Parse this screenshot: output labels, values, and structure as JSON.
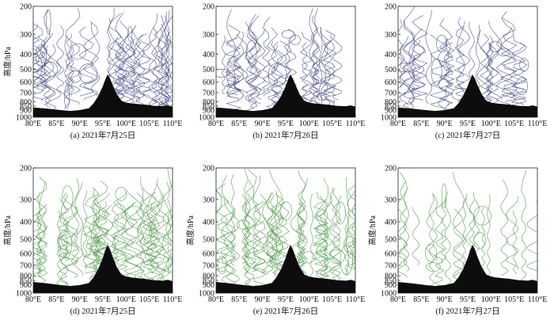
{
  "chart_data": [
    {
      "type": "contour",
      "caption": "(a) 2021年7月25日",
      "ylabel": "高度/hPa",
      "x_ticks": [
        "80°E",
        "85°E",
        "90°E",
        "95°E",
        "100°E",
        "105°E",
        "110°E"
      ],
      "y_ticks": [
        "200",
        "300",
        "400",
        "500",
        "600",
        "700",
        "800",
        "850",
        "900",
        "1000"
      ],
      "xlim": [
        80,
        110
      ],
      "ylim": [
        1000,
        200
      ],
      "y_scale": "log-pressure",
      "contour_color": "#3a3f78",
      "density": "high",
      "terrain": [
        [
          80,
          870
        ],
        [
          83,
          885
        ],
        [
          86,
          905
        ],
        [
          88,
          915
        ],
        [
          90,
          905
        ],
        [
          92,
          880
        ],
        [
          93,
          820
        ],
        [
          94,
          740
        ],
        [
          95,
          640
        ],
        [
          95.5,
          585
        ],
        [
          96,
          540
        ],
        [
          96.5,
          570
        ],
        [
          97,
          620
        ],
        [
          98,
          720
        ],
        [
          99,
          790
        ],
        [
          100,
          810
        ],
        [
          101,
          820
        ],
        [
          102,
          825
        ],
        [
          104,
          835
        ],
        [
          106,
          850
        ],
        [
          108,
          855
        ],
        [
          109,
          845
        ],
        [
          110,
          860
        ]
      ]
    },
    {
      "type": "contour",
      "caption": "(b) 2021年7月26日",
      "ylabel": "",
      "x_ticks": [
        "80°E",
        "85°E",
        "90°E",
        "95°E",
        "100°E",
        "105°E",
        "110°E"
      ],
      "y_ticks": [
        "200",
        "300",
        "400",
        "500",
        "600",
        "700",
        "800",
        "850",
        "900",
        "1000"
      ],
      "xlim": [
        80,
        110
      ],
      "ylim": [
        1000,
        200
      ],
      "y_scale": "log-pressure",
      "contour_color": "#3a3f78",
      "density": "medium",
      "terrain": [
        [
          80,
          870
        ],
        [
          83,
          885
        ],
        [
          86,
          905
        ],
        [
          88,
          915
        ],
        [
          90,
          905
        ],
        [
          92,
          880
        ],
        [
          93,
          820
        ],
        [
          94,
          740
        ],
        [
          95,
          640
        ],
        [
          95.5,
          585
        ],
        [
          96,
          540
        ],
        [
          96.5,
          570
        ],
        [
          97,
          620
        ],
        [
          98,
          720
        ],
        [
          99,
          790
        ],
        [
          100,
          810
        ],
        [
          101,
          820
        ],
        [
          102,
          825
        ],
        [
          104,
          835
        ],
        [
          106,
          850
        ],
        [
          108,
          855
        ],
        [
          109,
          845
        ],
        [
          110,
          860
        ]
      ]
    },
    {
      "type": "contour",
      "caption": "(c) 2021年7月27日",
      "ylabel": "",
      "x_ticks": [
        "80°E",
        "85°E",
        "90°E",
        "95°E",
        "100°E",
        "105°E",
        "110°E"
      ],
      "y_ticks": [
        "200",
        "300",
        "400",
        "500",
        "600",
        "700",
        "800",
        "850",
        "900",
        "1000"
      ],
      "xlim": [
        80,
        110
      ],
      "ylim": [
        1000,
        200
      ],
      "y_scale": "log-pressure",
      "contour_color": "#3a3f78",
      "density": "medium",
      "terrain": [
        [
          80,
          870
        ],
        [
          83,
          885
        ],
        [
          86,
          905
        ],
        [
          88,
          915
        ],
        [
          90,
          905
        ],
        [
          92,
          880
        ],
        [
          93,
          820
        ],
        [
          94,
          740
        ],
        [
          95,
          640
        ],
        [
          95.5,
          585
        ],
        [
          96,
          540
        ],
        [
          96.5,
          570
        ],
        [
          97,
          620
        ],
        [
          98,
          720
        ],
        [
          99,
          790
        ],
        [
          100,
          810
        ],
        [
          101,
          820
        ],
        [
          102,
          825
        ],
        [
          104,
          835
        ],
        [
          106,
          850
        ],
        [
          108,
          855
        ],
        [
          109,
          845
        ],
        [
          110,
          860
        ]
      ]
    },
    {
      "type": "contour",
      "caption": "(d) 2021年7月25日",
      "ylabel": "高度/hPa",
      "x_ticks": [
        "80°E",
        "85°E",
        "90°E",
        "95°E",
        "100°E",
        "105°E",
        "110°E"
      ],
      "y_ticks": [
        "200",
        "300",
        "400",
        "500",
        "600",
        "700",
        "800",
        "850",
        "900",
        "1000"
      ],
      "xlim": [
        80,
        110
      ],
      "ylim": [
        1000,
        200
      ],
      "y_scale": "log-pressure",
      "contour_color": "#3f8f3a",
      "density": "high",
      "terrain": [
        [
          80,
          870
        ],
        [
          83,
          885
        ],
        [
          86,
          905
        ],
        [
          88,
          915
        ],
        [
          90,
          905
        ],
        [
          92,
          880
        ],
        [
          93,
          820
        ],
        [
          94,
          740
        ],
        [
          95,
          640
        ],
        [
          95.5,
          585
        ],
        [
          96,
          540
        ],
        [
          96.5,
          570
        ],
        [
          97,
          620
        ],
        [
          98,
          720
        ],
        [
          99,
          790
        ],
        [
          100,
          810
        ],
        [
          101,
          820
        ],
        [
          102,
          825
        ],
        [
          104,
          835
        ],
        [
          106,
          850
        ],
        [
          108,
          855
        ],
        [
          109,
          845
        ],
        [
          110,
          860
        ]
      ]
    },
    {
      "type": "contour",
      "caption": "(e) 2021年7月26日",
      "ylabel": "高度/hPa",
      "x_ticks": [
        "80°E",
        "85°E",
        "90°E",
        "95°E",
        "100°E",
        "105°E",
        "110°E"
      ],
      "y_ticks": [
        "200",
        "300",
        "400",
        "500",
        "600",
        "700",
        "800",
        "850",
        "900",
        "1000"
      ],
      "xlim": [
        80,
        110
      ],
      "ylim": [
        1000,
        200
      ],
      "y_scale": "log-pressure",
      "contour_color": "#3f8f3a",
      "density": "high",
      "terrain": [
        [
          80,
          870
        ],
        [
          83,
          885
        ],
        [
          86,
          905
        ],
        [
          88,
          915
        ],
        [
          90,
          905
        ],
        [
          92,
          880
        ],
        [
          93,
          820
        ],
        [
          94,
          740
        ],
        [
          95,
          640
        ],
        [
          95.5,
          585
        ],
        [
          96,
          540
        ],
        [
          96.5,
          570
        ],
        [
          97,
          620
        ],
        [
          98,
          720
        ],
        [
          99,
          790
        ],
        [
          100,
          810
        ],
        [
          101,
          820
        ],
        [
          102,
          825
        ],
        [
          104,
          835
        ],
        [
          106,
          850
        ],
        [
          108,
          855
        ],
        [
          109,
          845
        ],
        [
          110,
          860
        ]
      ]
    },
    {
      "type": "contour",
      "caption": "(f) 2021年7月27日",
      "ylabel": "高度/hPa",
      "x_ticks": [
        "80°E",
        "85°E",
        "90°E",
        "95°E",
        "100°E",
        "105°E",
        "110°E"
      ],
      "y_ticks": [
        "200",
        "300",
        "400",
        "500",
        "600",
        "700",
        "800",
        "850",
        "900",
        "1000"
      ],
      "xlim": [
        80,
        110
      ],
      "ylim": [
        1000,
        200
      ],
      "y_scale": "log-pressure",
      "contour_color": "#3f8f3a",
      "density": "low",
      "terrain": [
        [
          80,
          870
        ],
        [
          83,
          885
        ],
        [
          86,
          905
        ],
        [
          88,
          915
        ],
        [
          90,
          905
        ],
        [
          92,
          880
        ],
        [
          93,
          820
        ],
        [
          94,
          740
        ],
        [
          95,
          640
        ],
        [
          95.5,
          585
        ],
        [
          96,
          540
        ],
        [
          96.5,
          570
        ],
        [
          97,
          620
        ],
        [
          98,
          720
        ],
        [
          99,
          790
        ],
        [
          100,
          810
        ],
        [
          101,
          820
        ],
        [
          102,
          825
        ],
        [
          104,
          835
        ],
        [
          106,
          850
        ],
        [
          108,
          855
        ],
        [
          109,
          845
        ],
        [
          110,
          860
        ]
      ]
    }
  ]
}
